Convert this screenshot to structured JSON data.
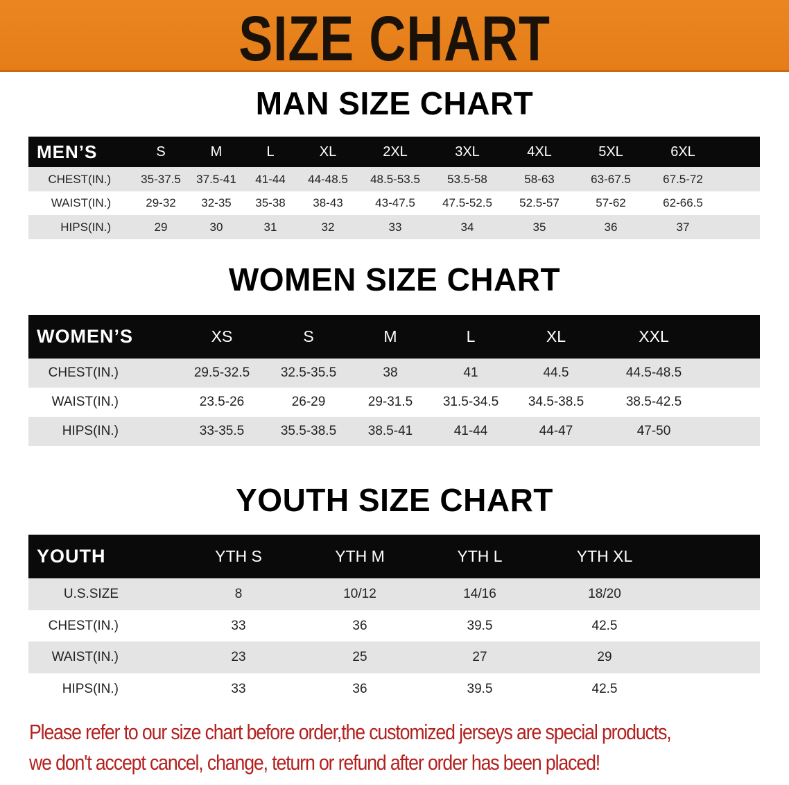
{
  "banner": {
    "title": "SIZE CHART",
    "color": "#e8821c"
  },
  "men": {
    "title": "MAN SIZE CHART",
    "corner": "MEN’S",
    "sizes": [
      "S",
      "M",
      "L",
      "XL",
      "2XL",
      "3XL",
      "4XL",
      "5XL",
      "6XL"
    ],
    "rows": [
      {
        "label": "CHEST(IN.)",
        "values": [
          "35-37.5",
          "37.5-41",
          "41-44",
          "44-48.5",
          "48.5-53.5",
          "53.5-58",
          "58-63",
          "63-67.5",
          "67.5-72"
        ]
      },
      {
        "label": "WAIST(IN.)",
        "values": [
          "29-32",
          "32-35",
          "35-38",
          "38-43",
          "43-47.5",
          "47.5-52.5",
          "52.5-57",
          "57-62",
          "62-66.5"
        ]
      },
      {
        "label": "HIPS(IN.)",
        "values": [
          "29",
          "30",
          "31",
          "32",
          "33",
          "34",
          "35",
          "36",
          "37"
        ]
      }
    ]
  },
  "women": {
    "title": "WOMEN SIZE CHART",
    "corner": "WOMEN’S",
    "sizes": [
      "XS",
      "S",
      "M",
      "L",
      "XL",
      "XXL"
    ],
    "rows": [
      {
        "label": "CHEST(IN.)",
        "values": [
          "29.5-32.5",
          "32.5-35.5",
          "38",
          "41",
          "44.5",
          "44.5-48.5"
        ]
      },
      {
        "label": "WAIST(IN.)",
        "values": [
          "23.5-26",
          "26-29",
          "29-31.5",
          "31.5-34.5",
          "34.5-38.5",
          "38.5-42.5"
        ]
      },
      {
        "label": "HIPS(IN.)",
        "values": [
          "33-35.5",
          "35.5-38.5",
          "38.5-41",
          "41-44",
          "44-47",
          "47-50"
        ]
      }
    ]
  },
  "youth": {
    "title": "YOUTH SIZE CHART",
    "corner": "YOUTH",
    "sizes": [
      "YTH S",
      "YTH M",
      "YTH L",
      "YTH XL"
    ],
    "rows": [
      {
        "label": "U.S.SIZE",
        "values": [
          "8",
          "10/12",
          "14/16",
          "18/20"
        ]
      },
      {
        "label": "CHEST(IN.)",
        "values": [
          "33",
          "36",
          "39.5",
          "42.5"
        ]
      },
      {
        "label": "WAIST(IN.)",
        "values": [
          "23",
          "25",
          "27",
          "29"
        ]
      },
      {
        "label": "HIPS(IN.)",
        "values": [
          "33",
          "36",
          "39.5",
          "42.5"
        ]
      }
    ]
  },
  "notice": {
    "line1": "Please refer to our size chart before order,the customized jerseys are special products,",
    "line2": "we don't accept cancel, change, teturn or refund after order has been placed!",
    "color": "#b3201e"
  }
}
